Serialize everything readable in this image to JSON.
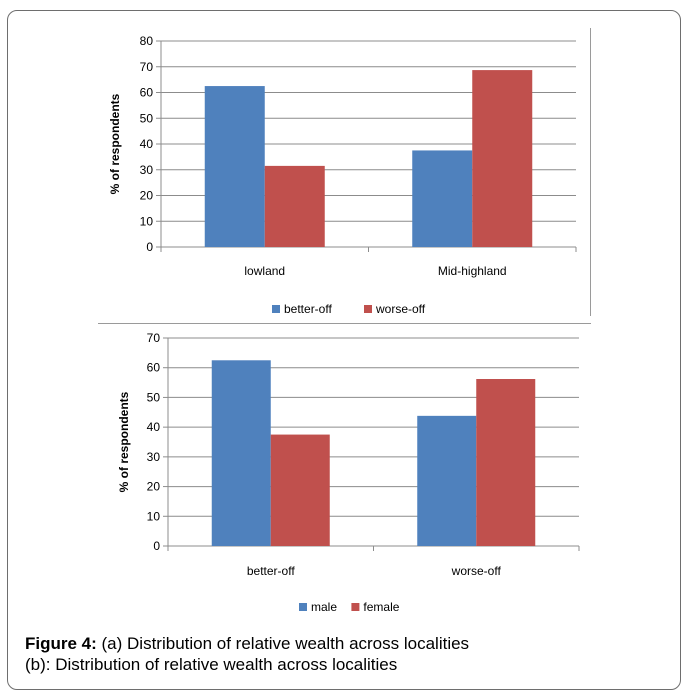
{
  "chart_data": [
    {
      "type": "bar",
      "title": "",
      "xlabel": "",
      "ylabel": "% of respondents",
      "ylim": [
        0,
        80
      ],
      "yticks": [
        "0",
        "10",
        "20",
        "30",
        "40",
        "50",
        "60",
        "70",
        "80"
      ],
      "ytick_values": [
        0,
        10,
        20,
        30,
        40,
        50,
        60,
        70,
        80
      ],
      "categories": [
        "lowland",
        "Mid-highland"
      ],
      "series": [
        {
          "name": "better-off",
          "color": "#4f81bd",
          "values": [
            62.5,
            37.5
          ]
        },
        {
          "name": "worse-off",
          "color": "#c0504d",
          "values": [
            31.5,
            68.7
          ]
        }
      ],
      "legend_position": "bottom",
      "grid": true
    },
    {
      "type": "bar",
      "title": "",
      "xlabel": "",
      "ylabel": "% of respondents",
      "ylim": [
        0,
        70
      ],
      "yticks": [
        "0",
        "10",
        "20",
        "30",
        "40",
        "50",
        "60",
        "70"
      ],
      "ytick_values": [
        0,
        10,
        20,
        30,
        40,
        50,
        60,
        70
      ],
      "categories": [
        "better-off",
        "worse-off"
      ],
      "series": [
        {
          "name": "male",
          "color": "#4f81bd",
          "values": [
            62.5,
            43.8
          ]
        },
        {
          "name": "female",
          "color": "#c0504d",
          "values": [
            37.5,
            56.2
          ]
        }
      ],
      "legend_position": "bottom",
      "grid": true
    }
  ],
  "caption": {
    "label": "Figure 4:",
    "line1_text": " (a) Distribution of relative wealth across localities",
    "line2_text": "(b): Distribution of relative wealth across localities"
  }
}
